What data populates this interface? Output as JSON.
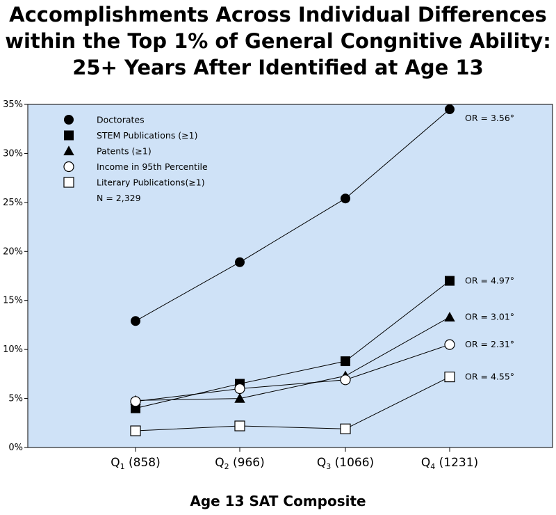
{
  "title_lines": [
    "Accomplishments Across Individual Differences",
    "within the Top 1% of General Congnitive Ability:",
    "25+ Years After Identified at Age 13"
  ],
  "chart_data": {
    "type": "line",
    "title": "Accomplishments Across Individual Differences within the Top 1% of General Congnitive Ability: 25+ Years After Identified at Age 13",
    "xlabel": "Age 13 SAT Composite",
    "ylabel": "",
    "ylim": [
      0,
      35
    ],
    "yticks": [
      "0%",
      "5%",
      "10%",
      "15%",
      "20%",
      "25%",
      "30%",
      "35%"
    ],
    "categories": [
      {
        "q": "Q",
        "sub": "1",
        "rest": " (858)"
      },
      {
        "q": "Q",
        "sub": "2",
        "rest": " (966)"
      },
      {
        "q": "Q",
        "sub": "3",
        "rest": " (1066)"
      },
      {
        "q": "Q",
        "sub": "4",
        "rest": " (1231)"
      }
    ],
    "series": [
      {
        "name": "Doctorates",
        "marker": "filled-circle",
        "values": [
          12.9,
          18.9,
          25.4,
          34.5
        ],
        "annotation": "OR = 3.56°"
      },
      {
        "name": "STEM Publications (≥1)",
        "marker": "filled-square",
        "values": [
          4.0,
          6.5,
          8.8,
          17.0
        ],
        "annotation": "OR = 4.97°"
      },
      {
        "name": "Patents (≥1)",
        "marker": "filled-triangle",
        "values": [
          4.8,
          5.0,
          7.3,
          13.3
        ],
        "annotation": "OR = 3.01°"
      },
      {
        "name": "Income in 95th Percentile",
        "marker": "open-circle",
        "values": [
          4.7,
          6.0,
          6.9,
          10.5
        ],
        "annotation": "OR = 2.31°"
      },
      {
        "name": "Literary Publications(≥1)",
        "marker": "open-square",
        "values": [
          1.7,
          2.2,
          1.9,
          7.2
        ],
        "annotation": "OR = 4.55°"
      }
    ],
    "legend_note": "N = 2,329",
    "legend_position": "top-left",
    "grid": false,
    "colors": {
      "plot_background": "#cfe2f7",
      "marker": "#000000",
      "open_marker_fill": "#ffffff"
    }
  }
}
